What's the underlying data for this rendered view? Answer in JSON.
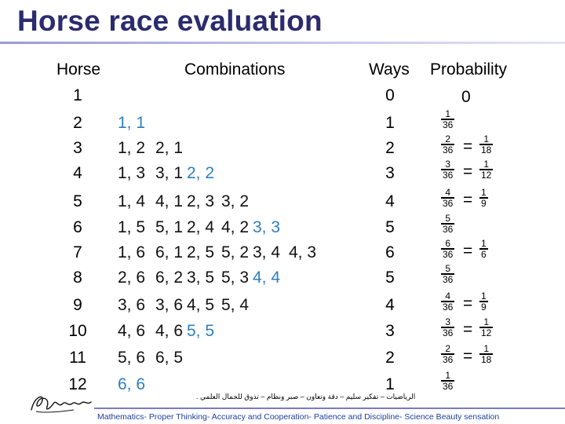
{
  "title": "Horse race evaluation",
  "headers": {
    "horse": "Horse",
    "combinations": "Combinations",
    "ways": "Ways",
    "probability": "Probability"
  },
  "rows": [
    {
      "horse": "1",
      "combos": [],
      "ways": "0",
      "prob": "0"
    },
    {
      "horse": "2",
      "combos": [
        {
          "t": "1, 1",
          "c": "blue"
        }
      ],
      "ways": "1",
      "prob": {
        "n": "1",
        "d": "36"
      }
    },
    {
      "horse": "3",
      "combos": [
        {
          "t": "1, 2",
          "c": "black"
        },
        {
          "t": "2, 1",
          "c": "black"
        }
      ],
      "ways": "2",
      "prob": {
        "n": "2",
        "d": "36",
        "sn": "1",
        "sd": "18"
      }
    },
    {
      "horse": "4",
      "combos": [
        {
          "t": "1, 3",
          "c": "black"
        },
        {
          "t": "3, 1",
          "c": "black"
        },
        {
          "t": "2, 2",
          "c": "blue"
        }
      ],
      "ways": "3",
      "prob": {
        "n": "3",
        "d": "36",
        "sn": "1",
        "sd": "12"
      }
    },
    {
      "horse": "5",
      "combos": [
        {
          "t": "1, 4",
          "c": "black"
        },
        {
          "t": "4, 1",
          "c": "black"
        },
        {
          "t": "2, 3",
          "c": "black"
        },
        {
          "t": "3, 2",
          "c": "black"
        }
      ],
      "ways": "4",
      "prob": {
        "n": "4",
        "d": "36",
        "sn": "1",
        "sd": "9"
      }
    },
    {
      "horse": "6",
      "combos": [
        {
          "t": "1, 5",
          "c": "black"
        },
        {
          "t": "5, 1",
          "c": "black"
        },
        {
          "t": "2, 4",
          "c": "black"
        },
        {
          "t": "4, 2",
          "c": "black"
        },
        {
          "t": "3, 3",
          "c": "blue"
        }
      ],
      "ways": "5",
      "prob": {
        "n": "5",
        "d": "36"
      }
    },
    {
      "horse": "7",
      "combos": [
        {
          "t": "1, 6",
          "c": "black"
        },
        {
          "t": "6, 1",
          "c": "black"
        },
        {
          "t": "2, 5",
          "c": "black"
        },
        {
          "t": "5, 2",
          "c": "black"
        },
        {
          "t": "3, 4",
          "c": "black"
        },
        {
          "t": "4, 3",
          "c": "black"
        }
      ],
      "ways": "6",
      "prob": {
        "n": "6",
        "d": "36",
        "sn": "1",
        "sd": "6"
      }
    },
    {
      "horse": "8",
      "combos": [
        {
          "t": "2, 6",
          "c": "black"
        },
        {
          "t": "6, 2",
          "c": "black"
        },
        {
          "t": "3, 5",
          "c": "black"
        },
        {
          "t": "5, 3",
          "c": "black"
        },
        {
          "t": "4, 4",
          "c": "blue"
        }
      ],
      "ways": "5",
      "prob": {
        "n": "5",
        "d": "36"
      }
    },
    {
      "horse": "9",
      "combos": [
        {
          "t": "3, 6",
          "c": "black"
        },
        {
          "t": "3, 6",
          "c": "black"
        },
        {
          "t": "4, 5",
          "c": "black"
        },
        {
          "t": "5, 4",
          "c": "black"
        }
      ],
      "ways": "4",
      "prob": {
        "n": "4",
        "d": "36",
        "sn": "1",
        "sd": "9"
      }
    },
    {
      "horse": "10",
      "combos": [
        {
          "t": "4, 6",
          "c": "black"
        },
        {
          "t": "4, 6",
          "c": "black"
        },
        {
          "t": "5, 5",
          "c": "blue"
        }
      ],
      "ways": "3",
      "prob": {
        "n": "3",
        "d": "36",
        "sn": "1",
        "sd": "12"
      }
    },
    {
      "horse": "11",
      "combos": [
        {
          "t": "5, 6",
          "c": "black"
        },
        {
          "t": "6, 5",
          "c": "black"
        }
      ],
      "ways": "2",
      "prob": {
        "n": "2",
        "d": "36",
        "sn": "1",
        "sd": "18"
      }
    },
    {
      "horse": "12",
      "combos": [
        {
          "t": "6, 6",
          "c": "blue"
        }
      ],
      "ways": "1",
      "prob": {
        "n": "1",
        "d": "36"
      }
    }
  ],
  "equals_sign": "=",
  "colors": {
    "title": "#2b2b6e",
    "blue_combo": "#2e7fbf",
    "footer_text": "#1f3f9f",
    "rule": "#9a9ad8"
  },
  "footer": {
    "arabic": "الرياضيات – تفكير سليم – دقة وتعاون – صبر ونظام – تذوق للجمال العلمي .",
    "english": "Mathematics- Proper Thinking- Accuracy and Cooperation- Patience and Discipline- Science Beauty sensation"
  },
  "signature_icon": "signature-icon"
}
